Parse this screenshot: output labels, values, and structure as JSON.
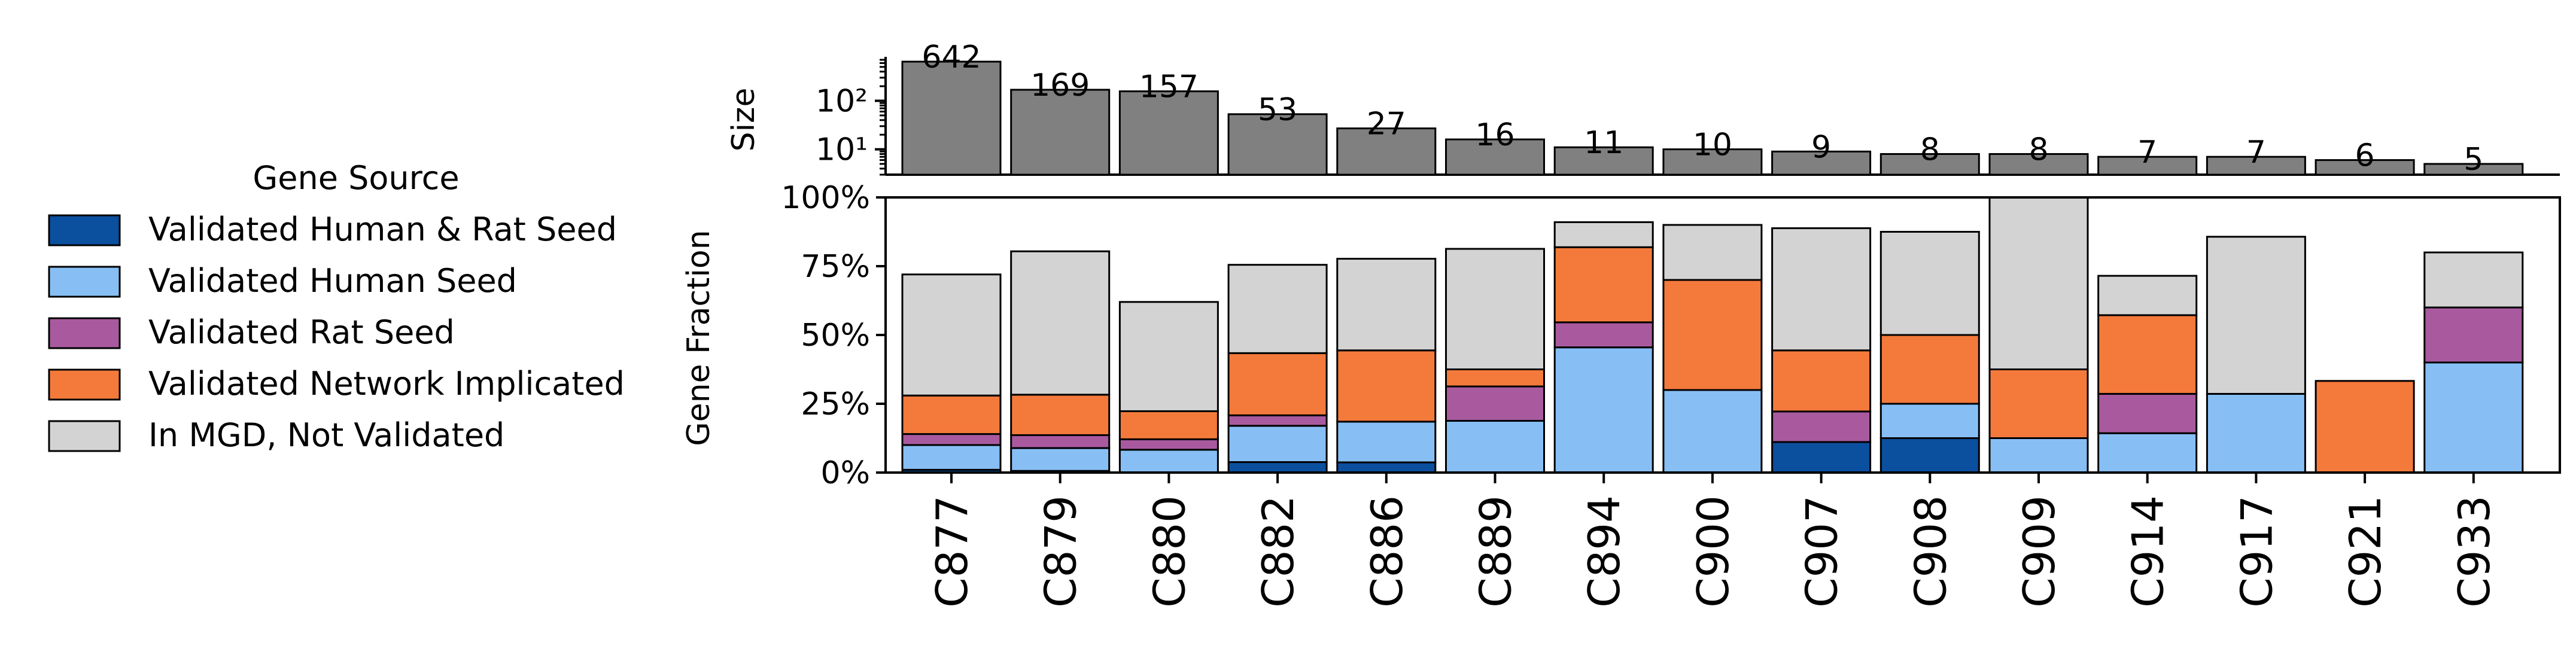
{
  "legend": {
    "title": "Gene Source",
    "items": [
      {
        "key": "hr",
        "label": "Validated Human & Rat Seed",
        "color": "#0b4f9f"
      },
      {
        "key": "h",
        "label": "Validated Human Seed",
        "color": "#87bff5"
      },
      {
        "key": "r",
        "label": "Validated Rat Seed",
        "color": "#a95a9f"
      },
      {
        "key": "n",
        "label": "Validated Network Implicated",
        "color": "#f47a3b"
      },
      {
        "key": "m",
        "label": "In MGD, Not Validated",
        "color": "#d3d3d3"
      }
    ]
  },
  "chart_data": [
    {
      "type": "bar",
      "panel": "top",
      "ylabel": "Size",
      "yscale": "log",
      "ylim": [
        3,
        700
      ],
      "yticks": [
        {
          "value": 10,
          "label": "10¹"
        },
        {
          "value": 100,
          "label": "10²"
        }
      ],
      "color": "#808080",
      "categories": [
        "C877",
        "C879",
        "C880",
        "C882",
        "C886",
        "C889",
        "C894",
        "C900",
        "C907",
        "C908",
        "C909",
        "C914",
        "C917",
        "C921",
        "C933"
      ],
      "values": [
        642,
        169,
        157,
        53,
        27,
        16,
        11,
        10,
        9,
        8,
        8,
        7,
        7,
        6,
        5
      ],
      "value_labels": [
        "642",
        "169",
        "157",
        "53",
        "27",
        "16",
        "11",
        "10",
        "9",
        "8",
        "8",
        "7",
        "7",
        "6",
        "5"
      ]
    },
    {
      "type": "bar",
      "stacked": true,
      "panel": "bottom",
      "ylabel": "Gene Fraction",
      "ylim": [
        0,
        1
      ],
      "yticks": [
        {
          "value": 0,
          "label": "0%"
        },
        {
          "value": 0.25,
          "label": "25%"
        },
        {
          "value": 0.5,
          "label": "50%"
        },
        {
          "value": 0.75,
          "label": "75%"
        },
        {
          "value": 1,
          "label": "100%"
        }
      ],
      "categories": [
        "C877",
        "C879",
        "C880",
        "C882",
        "C886",
        "C889",
        "C894",
        "C900",
        "C907",
        "C908",
        "C909",
        "C914",
        "C917",
        "C921",
        "C933"
      ],
      "series": [
        {
          "name": "Validated Human & Rat Seed",
          "color": "#0b4f9f",
          "values": [
            0.01,
            0.006,
            0.0,
            0.038,
            0.037,
            0.0,
            0.0,
            0.0,
            0.111,
            0.125,
            0.0,
            0.0,
            0.0,
            0.0,
            0.0
          ]
        },
        {
          "name": "Validated Human Seed",
          "color": "#87bff5",
          "values": [
            0.09,
            0.083,
            0.083,
            0.132,
            0.148,
            0.188,
            0.455,
            0.3,
            0.0,
            0.125,
            0.125,
            0.143,
            0.286,
            0.0,
            0.4
          ]
        },
        {
          "name": "Validated Rat Seed",
          "color": "#a95a9f",
          "values": [
            0.04,
            0.047,
            0.038,
            0.038,
            0.0,
            0.125,
            0.091,
            0.0,
            0.111,
            0.0,
            0.0,
            0.143,
            0.0,
            0.0,
            0.2
          ]
        },
        {
          "name": "Validated Network Implicated",
          "color": "#f47a3b",
          "values": [
            0.14,
            0.147,
            0.102,
            0.226,
            0.259,
            0.062,
            0.273,
            0.4,
            0.222,
            0.25,
            0.25,
            0.286,
            0.0,
            0.333,
            0.0
          ]
        },
        {
          "name": "In MGD, Not Validated",
          "color": "#d3d3d3",
          "values": [
            0.44,
            0.521,
            0.397,
            0.321,
            0.333,
            0.438,
            0.091,
            0.2,
            0.444,
            0.375,
            0.625,
            0.143,
            0.571,
            0.0,
            0.2
          ]
        }
      ]
    }
  ]
}
